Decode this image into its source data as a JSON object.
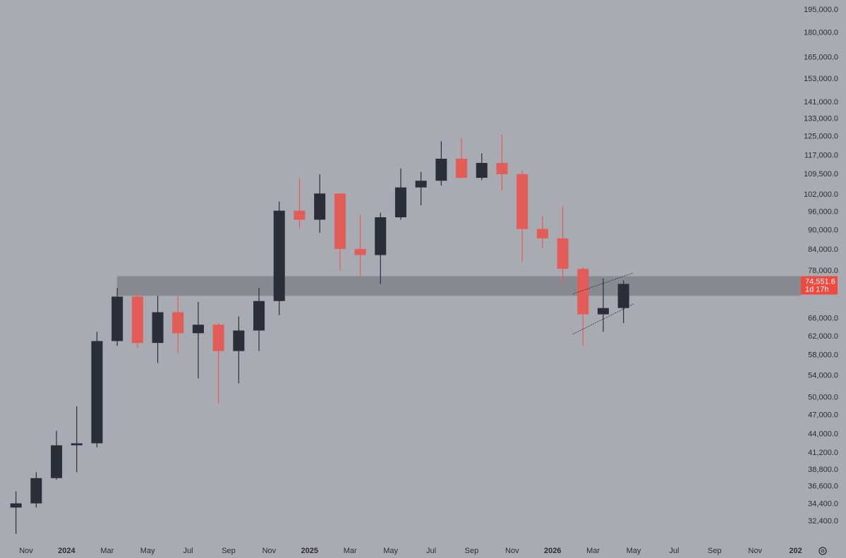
{
  "chart_data": {
    "type": "candlestick",
    "log_scale": true,
    "up_color": "#2a2e39",
    "down_color": "#e25c58",
    "x": [
      "2023-10",
      "2023-11",
      "2023-12",
      "2024-01",
      "2024-02",
      "2024-03",
      "2024-04",
      "2024-05",
      "2024-06",
      "2024-07",
      "2024-08",
      "2024-09",
      "2024-10",
      "2024-11",
      "2024-12",
      "2025-01",
      "2025-02",
      "2025-03",
      "2025-04",
      "2025-05",
      "2025-06",
      "2025-07",
      "2025-08",
      "2025-09",
      "2025-10",
      "2025-11",
      "2025-12",
      "2026-01",
      "2026-02",
      "2026-03",
      "2026-04"
    ],
    "open": [
      34000,
      34500,
      37700,
      42300,
      42600,
      61000,
      71300,
      60600,
      67500,
      62700,
      64600,
      58900,
      63300,
      70200,
      96400,
      93400,
      102400,
      84300,
      82500,
      94200,
      104600,
      107100,
      115700,
      108200,
      114000,
      109600,
      90400,
      87500,
      78600,
      67000,
      68500
    ],
    "high": [
      36000,
      38500,
      44500,
      48500,
      63000,
      73500,
      72500,
      71500,
      71500,
      70000,
      65000,
      66500,
      73500,
      99500,
      108300,
      109500,
      102500,
      95000,
      95700,
      111800,
      110500,
      123000,
      124400,
      117900,
      126000,
      111000,
      94500,
      97900,
      79000,
      76000,
      75500
    ],
    "low": [
      31000,
      34000,
      37500,
      38500,
      42000,
      60000,
      59500,
      56500,
      58500,
      53500,
      49000,
      52600,
      58900,
      66800,
      90500,
      89200,
      78200,
      76600,
      74500,
      93400,
      98200,
      105300,
      108000,
      107300,
      103500,
      80500,
      84400,
      74500,
      60000,
      63000,
      65000
    ],
    "close": [
      34500,
      37700,
      42300,
      42600,
      61000,
      71300,
      60600,
      67500,
      62700,
      64600,
      58900,
      63300,
      70200,
      96400,
      93400,
      102400,
      84300,
      82500,
      94200,
      104600,
      107100,
      115700,
      108200,
      114000,
      109600,
      90400,
      87500,
      78600,
      67000,
      68500,
      74551.6
    ],
    "ylim": [
      30000,
      202000
    ],
    "yticks": [
      {
        "value": 195000,
        "label": "195,000.0"
      },
      {
        "value": 180000,
        "label": "180,000.0"
      },
      {
        "value": 165000,
        "label": "165,000.0"
      },
      {
        "value": 153000,
        "label": "153,000.0"
      },
      {
        "value": 141000,
        "label": "141,000.0"
      },
      {
        "value": 133000,
        "label": "133,000.0"
      },
      {
        "value": 125000,
        "label": "125,000.0"
      },
      {
        "value": 117000,
        "label": "117,000.0"
      },
      {
        "value": 109500,
        "label": "109,500.0"
      },
      {
        "value": 102000,
        "label": "102,000.0"
      },
      {
        "value": 96000,
        "label": "96,000.0"
      },
      {
        "value": 90000,
        "label": "90,000.0"
      },
      {
        "value": 84000,
        "label": "84,000.0"
      },
      {
        "value": 78000,
        "label": "78,000.0"
      },
      {
        "value": 66000,
        "label": "66,000.0"
      },
      {
        "value": 62000,
        "label": "62,000.0"
      },
      {
        "value": 58000,
        "label": "58,000.0"
      },
      {
        "value": 54000,
        "label": "54,000.0"
      },
      {
        "value": 50000,
        "label": "50,000.0"
      },
      {
        "value": 47000,
        "label": "47,000.0"
      },
      {
        "value": 44000,
        "label": "44,000.0"
      },
      {
        "value": 41200,
        "label": "41,200.0"
      },
      {
        "value": 38800,
        "label": "38,800.0"
      },
      {
        "value": 36600,
        "label": "36,600.0"
      },
      {
        "value": 34400,
        "label": "34,400.0"
      },
      {
        "value": 32400,
        "label": "32,400.0"
      }
    ],
    "xticks": [
      {
        "value": "2023-11",
        "label": "Nov"
      },
      {
        "value": "2024-01",
        "label": "2024"
      },
      {
        "value": "2024-03",
        "label": "Mar"
      },
      {
        "value": "2024-05",
        "label": "May"
      },
      {
        "value": "2024-07",
        "label": "Jul"
      },
      {
        "value": "2024-09",
        "label": "Sep"
      },
      {
        "value": "2024-11",
        "label": "Nov"
      },
      {
        "value": "2025-01",
        "label": "2025"
      },
      {
        "value": "2025-03",
        "label": "Mar"
      },
      {
        "value": "2025-05",
        "label": "May"
      },
      {
        "value": "2025-07",
        "label": "Jul"
      },
      {
        "value": "2025-09",
        "label": "Sep"
      },
      {
        "value": "2025-11",
        "label": "Nov"
      },
      {
        "value": "2026-01",
        "label": "2026"
      },
      {
        "value": "2026-03",
        "label": "Mar"
      },
      {
        "value": "2026-05",
        "label": "May"
      },
      {
        "value": "2026-07",
        "label": "Jul"
      },
      {
        "value": "2026-09",
        "label": "Sep"
      },
      {
        "value": "2026-11",
        "label": "Nov"
      },
      {
        "value": "2027-01",
        "label": "202"
      }
    ],
    "zone": {
      "start": "2024-03",
      "low": 71500,
      "high": 76600
    },
    "channel": {
      "x": [
        "2026-02",
        "2026-05"
      ],
      "upper": [
        72000,
        77500
      ],
      "lower": [
        62500,
        69500
      ]
    },
    "last_price": {
      "value": 74551.6,
      "label": "74,551.6"
    },
    "countdown": "1d 17h"
  }
}
